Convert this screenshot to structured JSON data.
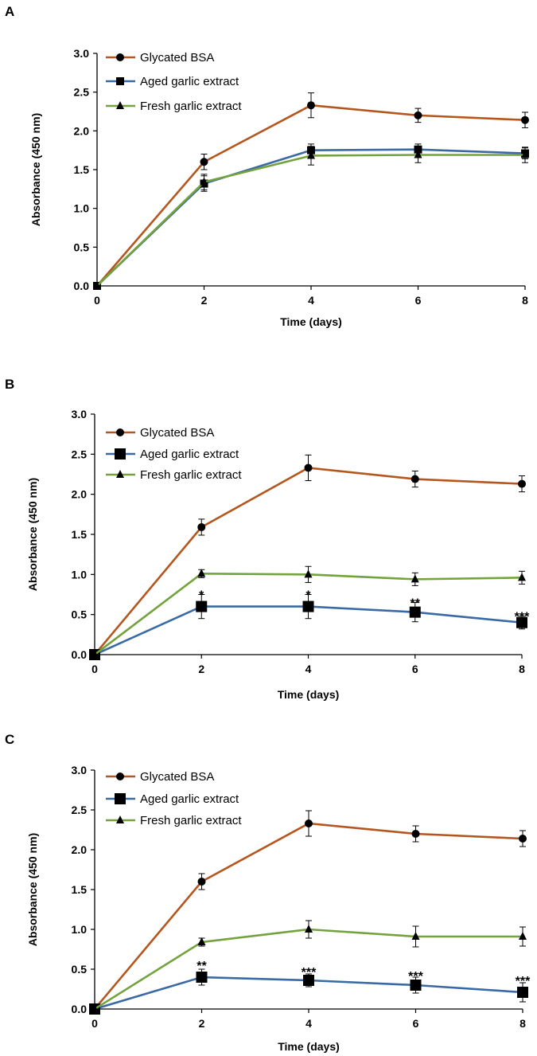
{
  "chart_data": [
    {
      "panel": "A",
      "type": "line",
      "x": [
        0,
        2,
        4,
        6,
        8
      ],
      "xlabel": "Time (days)",
      "ylabel": "Absorbance  (450 nm)",
      "xlim": [
        0,
        8
      ],
      "ylim": [
        0,
        3.0
      ],
      "yticks": [
        "0.0",
        "0.5",
        "1.0",
        "1.5",
        "2.0",
        "2.5",
        "3.0"
      ],
      "xticks": [
        "0",
        "2",
        "4",
        "6",
        "8"
      ],
      "legend_position": "top-left",
      "series": [
        {
          "name": "Glycated BSA",
          "color": "#b5561e",
          "marker": "circle",
          "values": [
            0,
            1.6,
            2.33,
            2.2,
            2.14
          ],
          "errors": [
            0,
            0.1,
            0.16,
            0.09,
            0.1
          ]
        },
        {
          "name": "Aged garlic extract",
          "color": "#3a6aa6",
          "marker": "square",
          "values": [
            0,
            1.32,
            1.75,
            1.76,
            1.71
          ],
          "errors": [
            0,
            0.1,
            0.08,
            0.07,
            0.07
          ]
        },
        {
          "name": "Fresh garlic extract",
          "color": "#74a23c",
          "marker": "triangle",
          "values": [
            0,
            1.34,
            1.68,
            1.69,
            1.69
          ],
          "errors": [
            0,
            0.1,
            0.12,
            0.1,
            0.1
          ]
        }
      ],
      "annotations": []
    },
    {
      "panel": "B",
      "type": "line",
      "x": [
        0,
        2,
        4,
        6,
        8
      ],
      "xlabel": "Time (days)",
      "ylabel": "Absorbance  (450 nm)",
      "xlim": [
        0,
        8
      ],
      "ylim": [
        0,
        3.0
      ],
      "yticks": [
        "0.0",
        "0.5",
        "1.0",
        "1.5",
        "2.0",
        "2.5",
        "3.0"
      ],
      "xticks": [
        "0",
        "2",
        "4",
        "6",
        "8"
      ],
      "legend_position": "top-left",
      "series": [
        {
          "name": "Glycated BSA",
          "color": "#b5561e",
          "marker": "circle",
          "values": [
            0,
            1.59,
            2.33,
            2.19,
            2.13
          ],
          "errors": [
            0,
            0.1,
            0.16,
            0.1,
            0.1
          ]
        },
        {
          "name": "Aged garlic extract",
          "color": "#3a6aa6",
          "marker": "square",
          "values": [
            0,
            0.6,
            0.6,
            0.53,
            0.4
          ],
          "errors": [
            0,
            0.15,
            0.15,
            0.12,
            0.08
          ]
        },
        {
          "name": "Fresh garlic extract",
          "color": "#74a23c",
          "marker": "triangle",
          "values": [
            0,
            1.01,
            1.0,
            0.94,
            0.96
          ],
          "errors": [
            0,
            0.05,
            0.1,
            0.08,
            0.08
          ]
        }
      ],
      "annotations": [
        {
          "x": 2,
          "y": 0.75,
          "text": "*"
        },
        {
          "x": 4,
          "y": 0.75,
          "text": "*"
        },
        {
          "x": 6,
          "y": 0.65,
          "text": "**"
        },
        {
          "x": 8,
          "y": 0.48,
          "text": "***"
        }
      ]
    },
    {
      "panel": "C",
      "type": "line",
      "x": [
        0,
        2,
        4,
        6,
        8
      ],
      "xlabel": "Time (days)",
      "ylabel": "Absorbance  (450 nm)",
      "xlim": [
        0,
        8
      ],
      "ylim": [
        0,
        3.0
      ],
      "yticks": [
        "0.0",
        "0.5",
        "1.0",
        "1.5",
        "2.0",
        "2.5",
        "3.0"
      ],
      "xticks": [
        "0",
        "2",
        "4",
        "6",
        "8"
      ],
      "legend_position": "top-left",
      "series": [
        {
          "name": "Glycated BSA",
          "color": "#b5561e",
          "marker": "circle",
          "values": [
            0,
            1.6,
            2.33,
            2.2,
            2.14
          ],
          "errors": [
            0,
            0.1,
            0.16,
            0.1,
            0.1
          ]
        },
        {
          "name": "Aged garlic extract",
          "color": "#3a6aa6",
          "marker": "square",
          "values": [
            0,
            0.4,
            0.36,
            0.3,
            0.21
          ],
          "errors": [
            0,
            0.1,
            0.08,
            0.1,
            0.12
          ]
        },
        {
          "name": "Fresh garlic extract",
          "color": "#74a23c",
          "marker": "triangle",
          "values": [
            0,
            0.84,
            1.0,
            0.91,
            0.91
          ],
          "errors": [
            0,
            0.05,
            0.11,
            0.13,
            0.12
          ]
        }
      ],
      "annotations": [
        {
          "x": 2,
          "y": 0.55,
          "text": "**"
        },
        {
          "x": 4,
          "y": 0.47,
          "text": "***"
        },
        {
          "x": 6,
          "y": 0.42,
          "text": "***"
        },
        {
          "x": 8,
          "y": 0.36,
          "text": "***"
        }
      ]
    }
  ]
}
